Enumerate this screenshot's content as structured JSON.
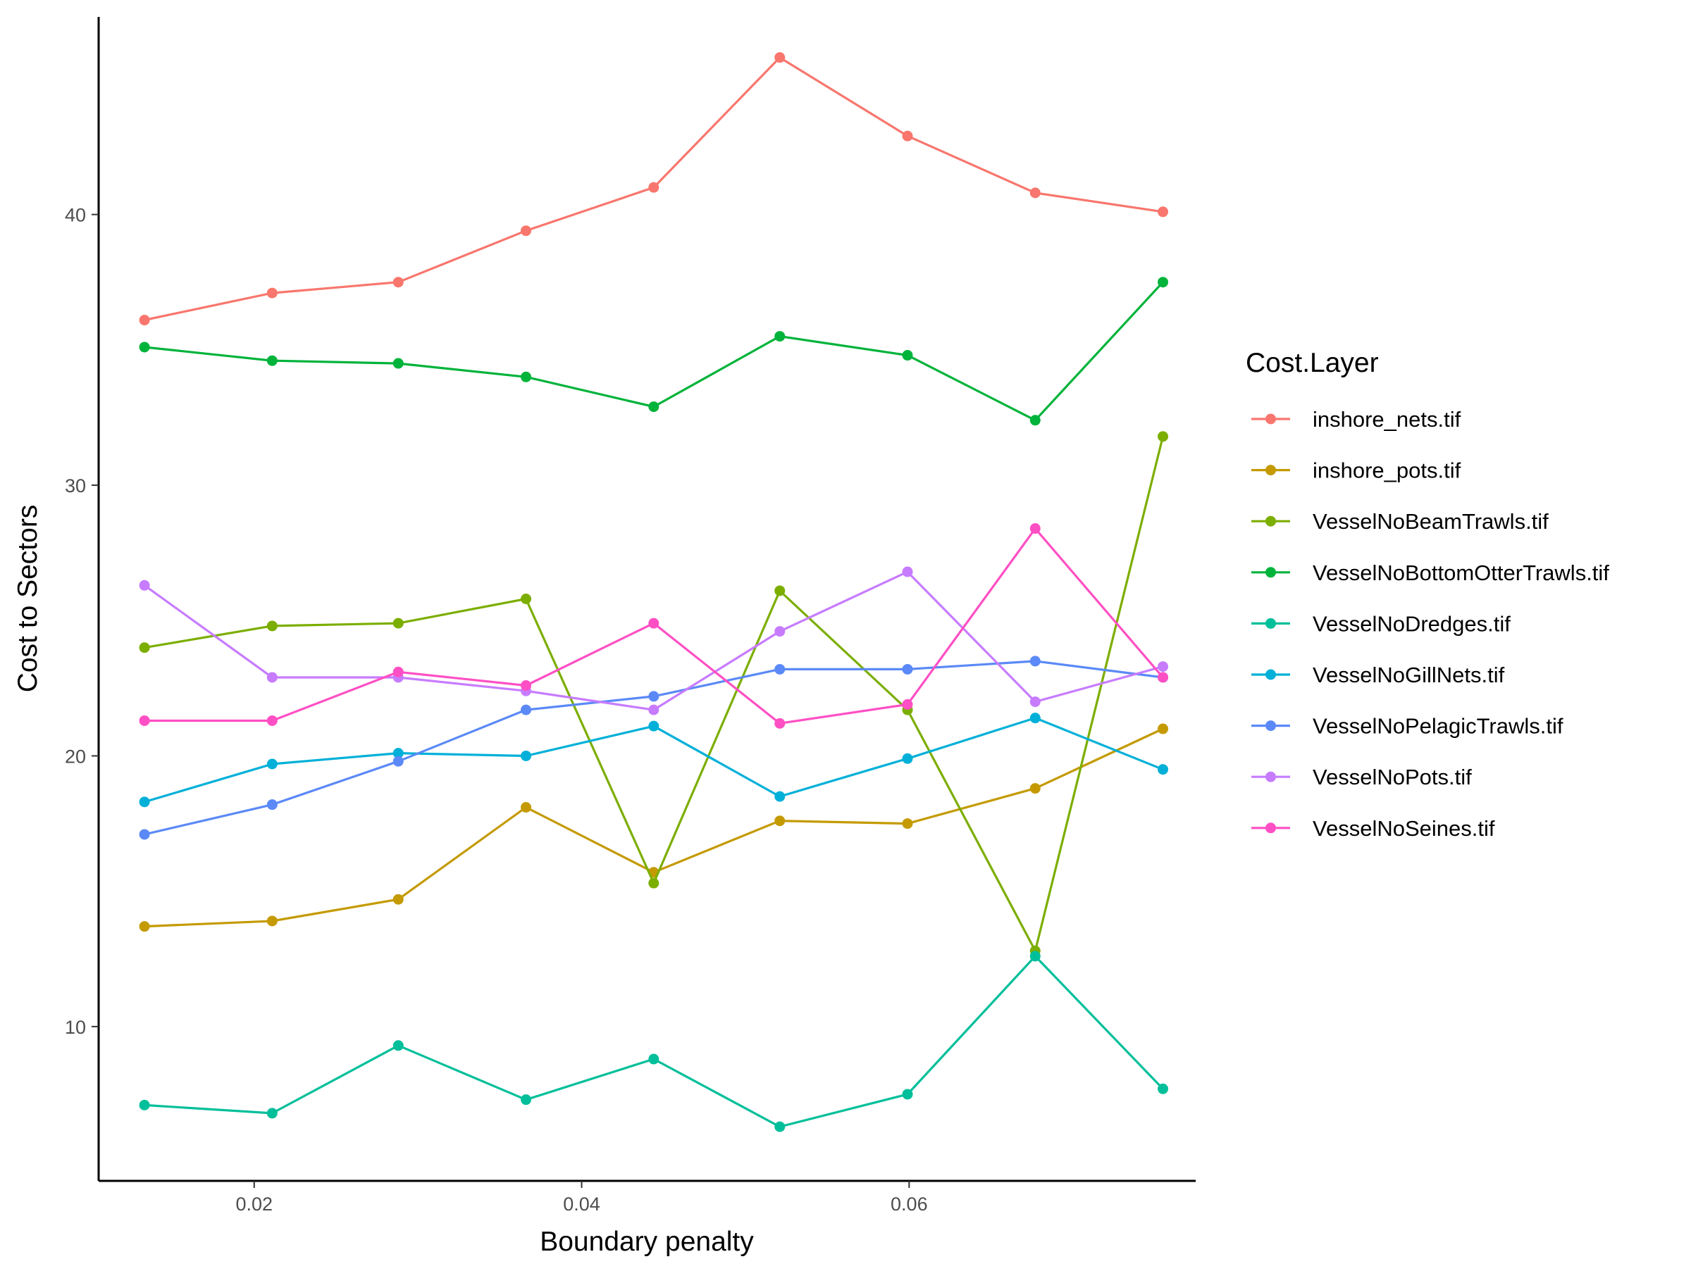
{
  "chart_data": {
    "type": "line",
    "title": "",
    "xlabel": "Boundary penalty",
    "ylabel": "Cost to Sectors",
    "xlim": [
      0.0105,
      0.0775
    ],
    "ylim": [
      4.3,
      47.3
    ],
    "x_ticks": [
      {
        "value": 0.02,
        "label": "0.02"
      },
      {
        "value": 0.04,
        "label": "0.04"
      },
      {
        "value": 0.06,
        "label": "0.06"
      }
    ],
    "y_ticks": [
      {
        "value": 10,
        "label": "10"
      },
      {
        "value": 20,
        "label": "20"
      },
      {
        "value": 30,
        "label": "30"
      },
      {
        "value": 40,
        "label": "40"
      }
    ],
    "grid": false,
    "legend": {
      "title": "Cost.Layer",
      "placement": "right"
    },
    "x": [
      0.0133,
      0.0211,
      0.0288,
      0.0366,
      0.0444,
      0.0521,
      0.0599,
      0.0677,
      0.0755
    ],
    "series": [
      {
        "name": "inshore_nets.tif",
        "color": "#F8766D",
        "values": [
          36.1,
          37.1,
          37.5,
          39.4,
          41.0,
          45.8,
          42.9,
          40.8,
          40.1
        ]
      },
      {
        "name": "inshore_pots.tif",
        "color": "#C49A00",
        "values": [
          13.7,
          13.9,
          14.7,
          18.1,
          15.7,
          17.6,
          17.5,
          18.8,
          21.0
        ]
      },
      {
        "name": "VesselNoBeamTrawls.tif",
        "color": "#7CAE00",
        "values": [
          24.0,
          24.8,
          24.9,
          25.8,
          15.3,
          26.1,
          21.7,
          12.8,
          31.8
        ]
      },
      {
        "name": "VesselNoBottomOtterTrawls.tif",
        "color": "#00B33A",
        "values": [
          35.1,
          34.6,
          34.5,
          34.0,
          32.9,
          35.5,
          34.8,
          32.4,
          37.5
        ]
      },
      {
        "name": "VesselNoDredges.tif",
        "color": "#00BF9A",
        "values": [
          7.1,
          6.8,
          9.3,
          7.3,
          8.8,
          6.3,
          7.5,
          12.6,
          7.7
        ]
      },
      {
        "name": "VesselNoGillNets.tif",
        "color": "#00B0D8",
        "values": [
          18.3,
          19.7,
          20.1,
          20.0,
          21.1,
          18.5,
          19.9,
          21.4,
          19.5
        ]
      },
      {
        "name": "VesselNoPelagicTrawls.tif",
        "color": "#5B89F7",
        "values": [
          17.1,
          18.2,
          19.8,
          21.7,
          22.2,
          23.2,
          23.2,
          23.5,
          22.9
        ]
      },
      {
        "name": "VesselNoPots.tif",
        "color": "#C77CFF",
        "values": [
          26.3,
          22.9,
          22.9,
          22.4,
          21.7,
          24.6,
          26.8,
          22.0,
          23.3
        ]
      },
      {
        "name": "VesselNoSeines.tif",
        "color": "#FF4FC4",
        "values": [
          21.3,
          21.3,
          23.1,
          22.6,
          24.9,
          21.2,
          21.9,
          28.4,
          22.9
        ]
      }
    ]
  }
}
